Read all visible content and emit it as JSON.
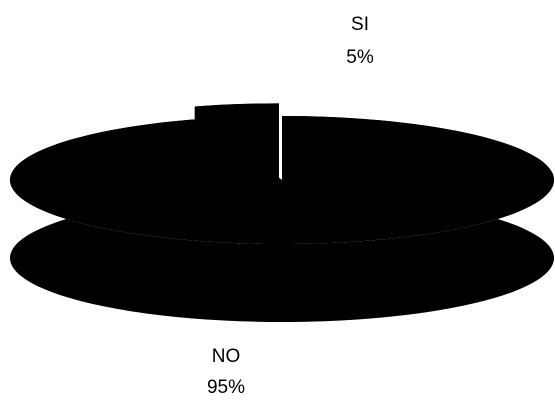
{
  "chart_data": {
    "type": "pie",
    "style": "3d-exploded",
    "title": "",
    "slices": [
      {
        "label": "NO",
        "value": 95,
        "value_label": "95%",
        "color": "#000000"
      },
      {
        "label": "SI",
        "value": 5,
        "value_label": "5%",
        "color": "#000000"
      }
    ],
    "legend": "none"
  }
}
